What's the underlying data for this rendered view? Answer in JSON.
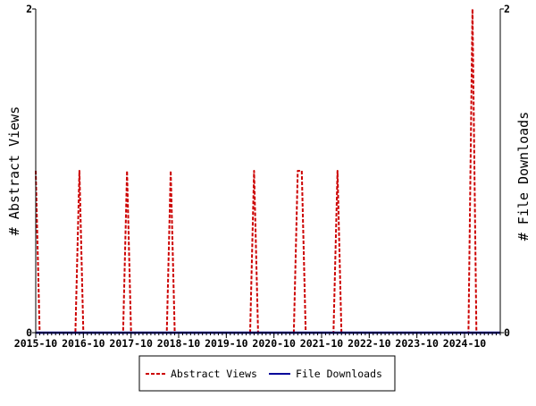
{
  "chart_data": {
    "type": "line",
    "x_tick_labels": [
      "2015-10",
      "2016-10",
      "2017-10",
      "2018-10",
      "2019-10",
      "2020-10",
      "2021-10",
      "2022-10",
      "2023-10",
      "2024-10"
    ],
    "x_range": [
      "2015-10",
      "2025-07"
    ],
    "ylabel_left": "# Abstract Views",
    "ylabel_right": "# File Downloads",
    "ylim_left": [
      0,
      2
    ],
    "ylim_right": [
      0,
      2
    ],
    "y_ticks_left": [
      "0",
      "2"
    ],
    "y_ticks_right": [
      "0",
      "2"
    ],
    "grid": false,
    "legend_position": "bottom-center",
    "series": [
      {
        "name": "Abstract Views",
        "color": "#cc0000",
        "style": "dashed",
        "axis": "left",
        "points": [
          [
            "2015-10",
            1
          ],
          [
            "2015-11",
            0
          ],
          [
            "2016-08",
            0
          ],
          [
            "2016-09",
            1
          ],
          [
            "2016-10",
            0
          ],
          [
            "2017-08",
            0
          ],
          [
            "2017-09",
            1
          ],
          [
            "2017-10",
            0
          ],
          [
            "2018-07",
            0
          ],
          [
            "2018-08",
            1
          ],
          [
            "2018-09",
            0
          ],
          [
            "2020-04",
            0
          ],
          [
            "2020-05",
            1
          ],
          [
            "2020-06",
            0
          ],
          [
            "2021-03",
            0
          ],
          [
            "2021-04",
            1
          ],
          [
            "2021-05",
            1
          ],
          [
            "2021-06",
            0
          ],
          [
            "2022-01",
            0
          ],
          [
            "2022-02",
            1
          ],
          [
            "2022-03",
            0
          ],
          [
            "2024-11",
            0
          ],
          [
            "2024-12",
            2
          ],
          [
            "2025-01",
            0
          ]
        ]
      },
      {
        "name": "File Downloads",
        "color": "#000099",
        "style": "solid",
        "axis": "right",
        "points": [
          [
            "2015-10",
            0
          ],
          [
            "2025-07",
            0
          ]
        ]
      }
    ]
  }
}
